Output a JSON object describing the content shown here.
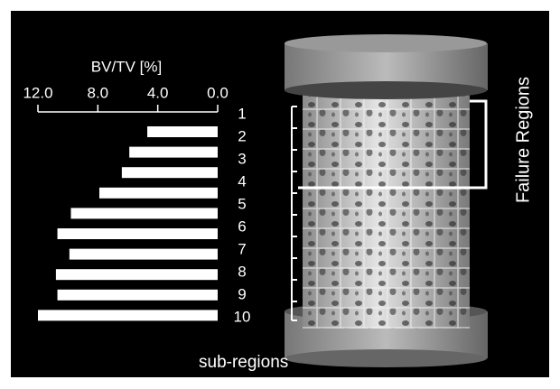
{
  "chart_data": {
    "type": "bar",
    "orientation": "horizontal",
    "x_label": "BV/TV [%]",
    "categories": [
      "1",
      "2",
      "3",
      "4",
      "5",
      "6",
      "7",
      "8",
      "9",
      "10"
    ],
    "values": [
      4.7,
      5.9,
      6.4,
      7.9,
      9.8,
      10.7,
      9.9,
      10.8,
      10.7,
      12.0
    ],
    "color": "#ffffff",
    "xlim": [
      12,
      0
    ],
    "xticks": [
      {
        "value": 12,
        "label": "12.0"
      },
      {
        "value": 8,
        "label": "8.0"
      },
      {
        "value": 4,
        "label": "4.0"
      },
      {
        "value": 0,
        "label": "0.0"
      }
    ],
    "annotations": {
      "failure": "Failure Regions",
      "subregions": "sub-regions"
    }
  }
}
